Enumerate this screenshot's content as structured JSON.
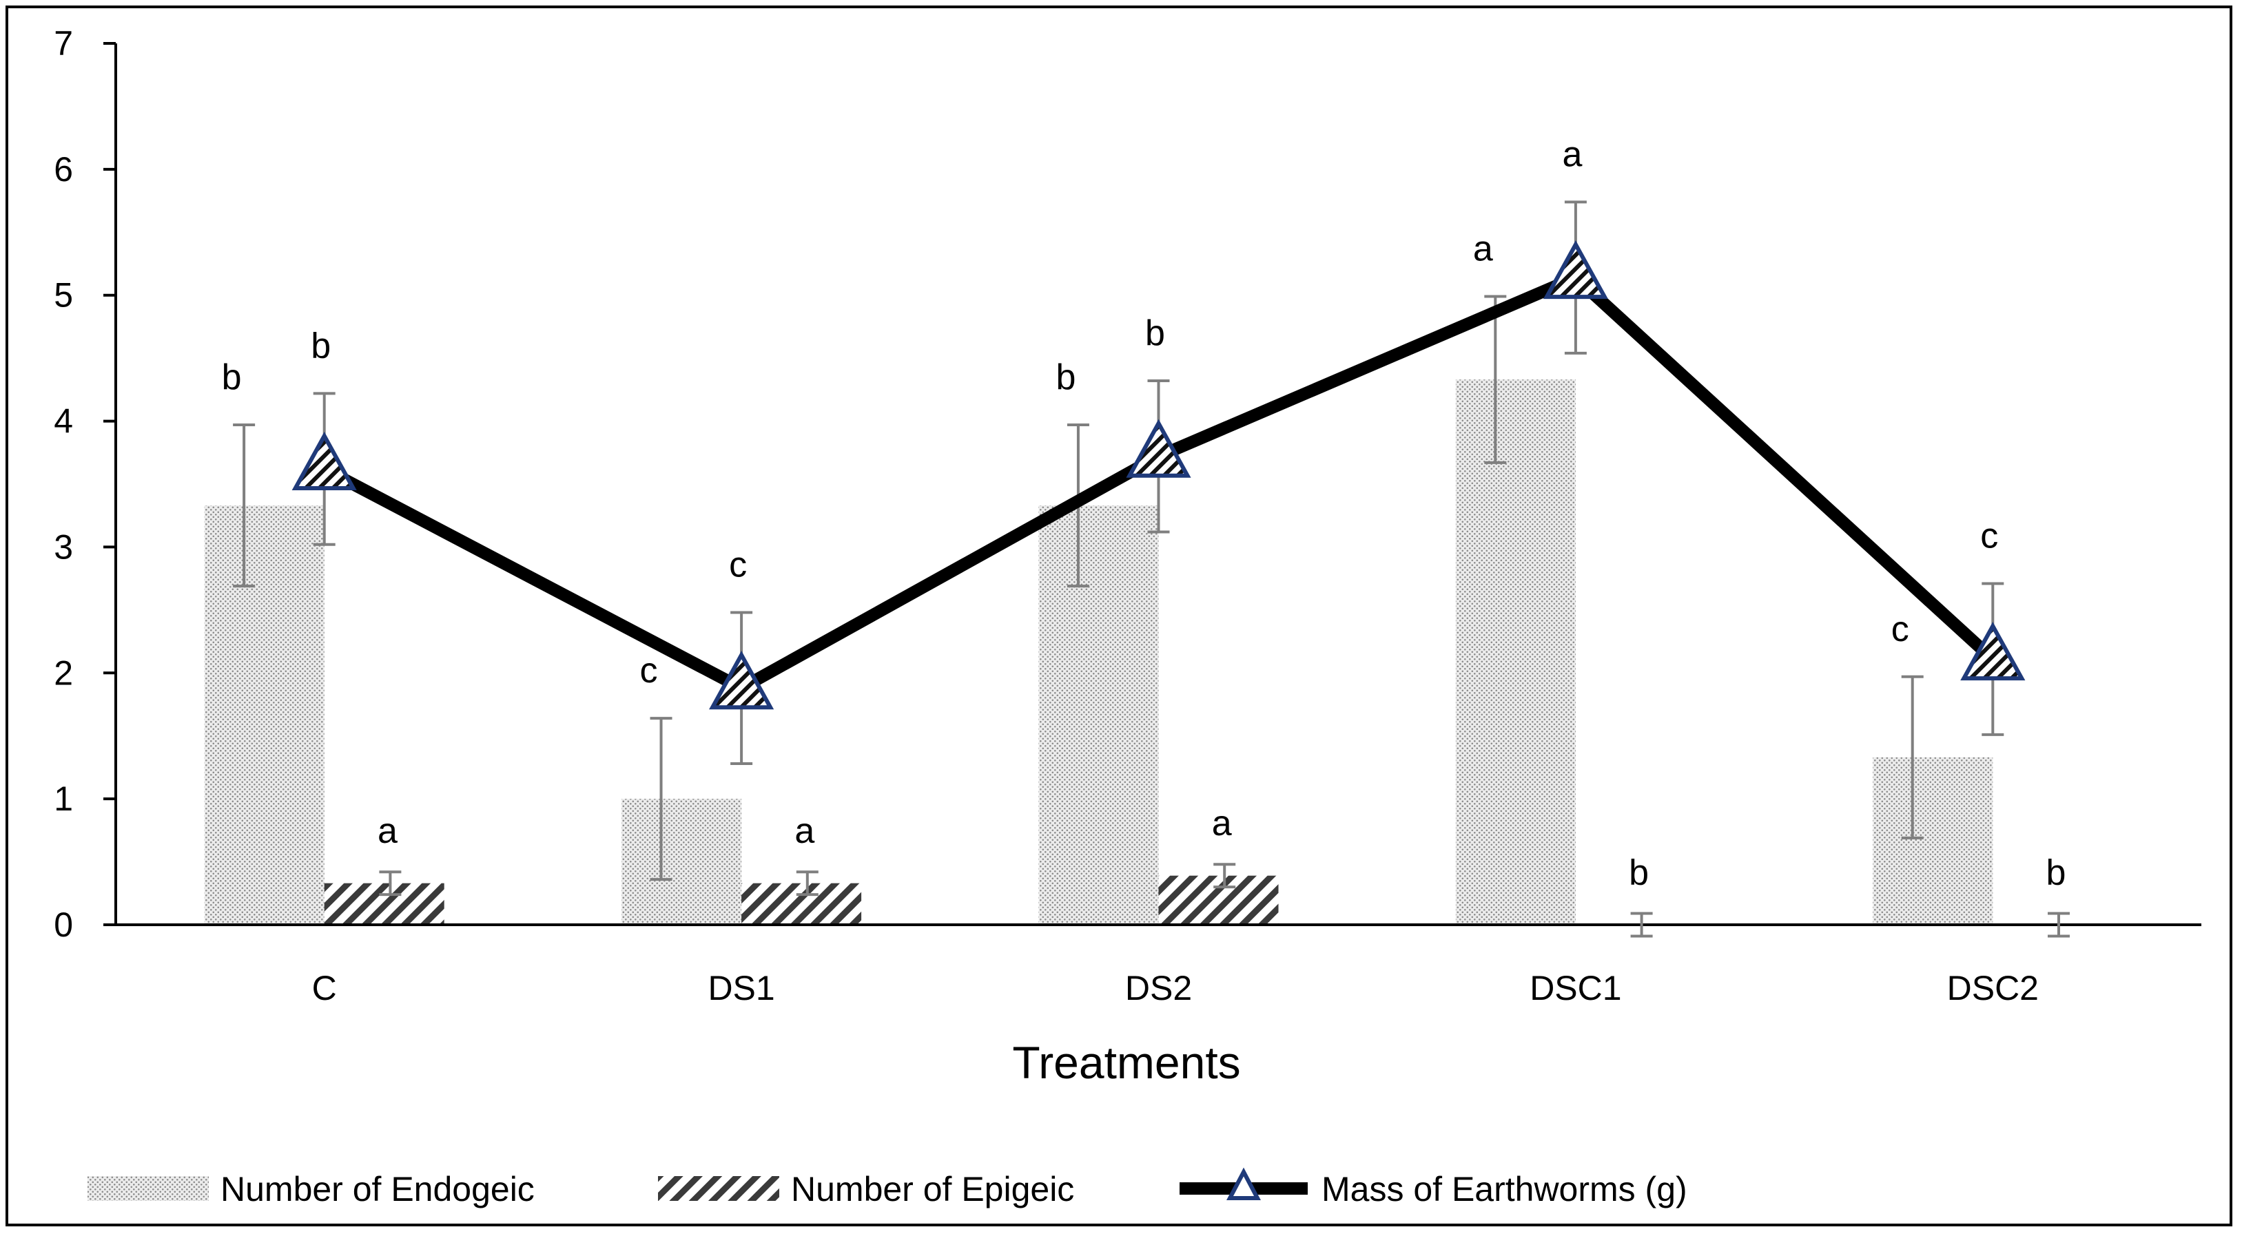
{
  "chart_data": {
    "type": "bar",
    "title": "",
    "xlabel": "Treatments",
    "ylabel": "",
    "ylim": [
      0,
      7
    ],
    "yticks": [
      "0",
      "1",
      "2",
      "3",
      "4",
      "5",
      "6",
      "7"
    ],
    "grid": false,
    "legend_position": "bottom",
    "categories": [
      "C",
      "DS1",
      "DS2",
      "DSC1",
      "DSC2"
    ],
    "series": [
      {
        "name": "Number of Endogeic",
        "kind": "bar",
        "pattern": "dotted",
        "values": [
          3.33,
          1.0,
          3.33,
          4.33,
          1.33
        ],
        "errors": [
          0.64,
          0.64,
          0.64,
          0.66,
          0.64
        ],
        "letters": [
          "b",
          "c",
          "b",
          "a",
          "c"
        ]
      },
      {
        "name": "Number of Epigeic",
        "kind": "bar",
        "pattern": "diagonal-hatch",
        "values": [
          0.33,
          0.33,
          0.39,
          0.0,
          0.0
        ],
        "errors": [
          0.09,
          0.09,
          0.09,
          0.09,
          0.09
        ],
        "letters": [
          "a",
          "a",
          "a",
          "b",
          "b"
        ]
      },
      {
        "name": "Mass of Earthworms (g)",
        "kind": "line",
        "marker": "triangle",
        "values": [
          3.62,
          1.88,
          3.72,
          5.14,
          2.11
        ],
        "errors": [
          0.6,
          0.6,
          0.6,
          0.6,
          0.6
        ],
        "letters": [
          "b",
          "c",
          "b",
          "a",
          "c"
        ]
      }
    ],
    "colors": {
      "line": "#000000",
      "marker_edge": "#1f3a7a",
      "error_bar": "#7f7f7f",
      "bar_dots": "#9a9a9a"
    }
  }
}
